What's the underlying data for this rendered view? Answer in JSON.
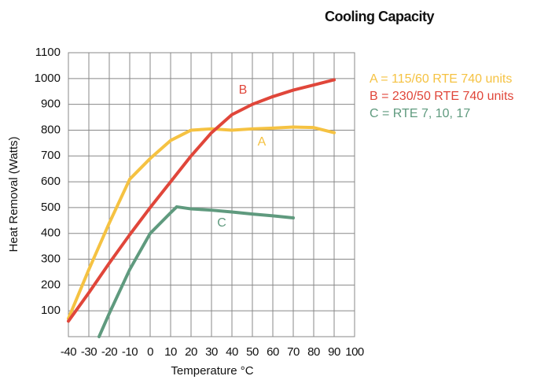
{
  "chart_data": {
    "type": "line",
    "title": "Cooling Capacity",
    "xlabel": "Temperature °C",
    "ylabel": "Heat Removal (Watts)",
    "xlim": [
      -40,
      100
    ],
    "xticks": [
      -40,
      -30,
      -20,
      -10,
      0,
      10,
      20,
      30,
      40,
      50,
      60,
      70,
      80,
      90,
      100
    ],
    "ylim": [
      0,
      1100
    ],
    "yticks": [
      100,
      200,
      300,
      400,
      500,
      600,
      700,
      800,
      900,
      1000,
      1100
    ],
    "grid": true,
    "series": [
      {
        "name": "A = 115/60 RTE 740 units",
        "color": "#f5c242",
        "x": [
          -40,
          -30,
          -20,
          -10,
          0,
          10,
          20,
          30,
          40,
          50,
          60,
          70,
          80,
          90
        ],
        "values": [
          70,
          260,
          440,
          610,
          690,
          760,
          800,
          805,
          800,
          805,
          808,
          812,
          810,
          790
        ]
      },
      {
        "name": "B = 230/50 RTE 740 units",
        "color": "#e0463a",
        "x": [
          -40,
          -30,
          -20,
          -10,
          0,
          10,
          20,
          30,
          40,
          50,
          60,
          70,
          80,
          90
        ],
        "values": [
          60,
          170,
          285,
          395,
          500,
          600,
          700,
          790,
          860,
          900,
          930,
          955,
          975,
          995
        ]
      },
      {
        "name": "C = RTE 7, 10, 17",
        "color": "#5f9a7e",
        "x": [
          -25,
          -20,
          -10,
          0,
          10,
          13,
          20,
          30,
          40,
          50,
          60,
          70
        ],
        "values": [
          0,
          90,
          260,
          400,
          480,
          503,
          495,
          490,
          483,
          475,
          468,
          460
        ]
      }
    ],
    "annotations": [
      "A",
      "B",
      "C"
    ]
  }
}
